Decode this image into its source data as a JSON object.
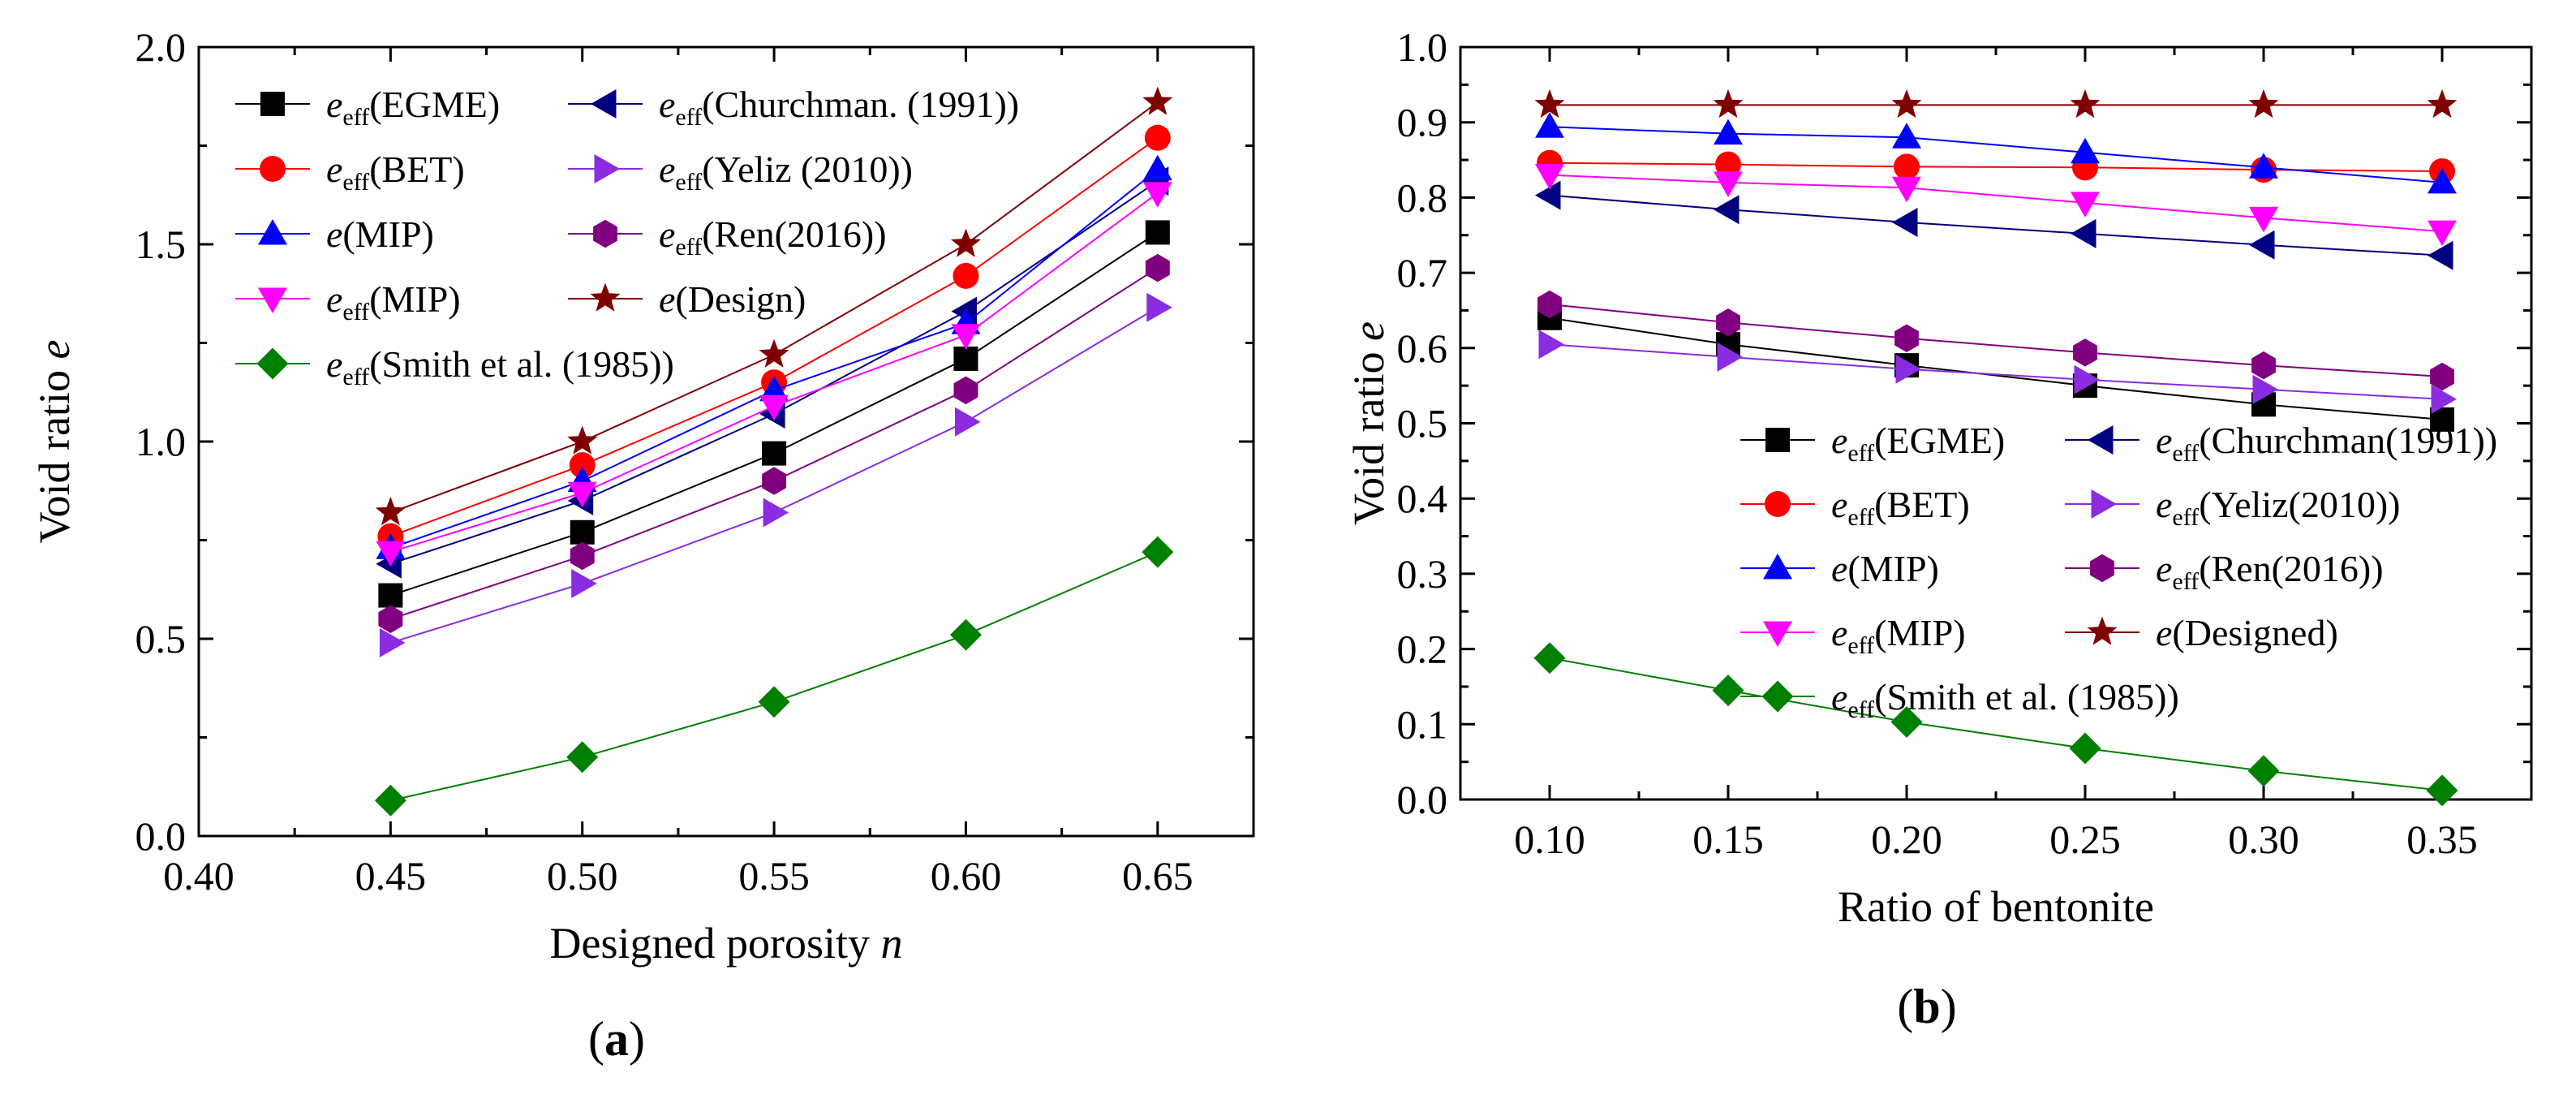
{
  "chart_data": [
    {
      "type": "line",
      "panel_label": "(a)",
      "xlabel_text": "Designed porosity ",
      "xlabel_var": "n",
      "ylabel_text": "Void ratio ",
      "ylabel_var": "e",
      "xlim": [
        0.4,
        0.675
      ],
      "ylim": [
        0.0,
        2.0
      ],
      "xticks": [
        0.4,
        0.45,
        0.5,
        0.55,
        0.6,
        0.65
      ],
      "xtick_labels": [
        "0.40",
        "0.45",
        "0.50",
        "0.55",
        "0.60",
        "0.65"
      ],
      "yticks": [
        0.0,
        0.5,
        1.0,
        1.5,
        2.0
      ],
      "ytick_labels": [
        "0.0",
        "0.5",
        "1.0",
        "1.5",
        "2.0"
      ],
      "x": [
        0.45,
        0.5,
        0.55,
        0.6,
        0.65
      ],
      "legend_columns": 2,
      "legend_placement": "top-left",
      "series": [
        {
          "id": "egme",
          "base": "e",
          "sub": "eff",
          "rest": "(EGME)",
          "color": "#000000",
          "marker": "square",
          "values": [
            0.61,
            0.77,
            0.97,
            1.21,
            1.53
          ]
        },
        {
          "id": "churchman",
          "base": "e",
          "sub": "eff",
          "rest": "(Churchman. (1991))",
          "color": "#000080",
          "marker": "triangle-left",
          "values": [
            0.69,
            0.85,
            1.07,
            1.33,
            1.66
          ]
        },
        {
          "id": "bet",
          "base": "e",
          "sub": "eff",
          "rest": "(BET)",
          "color": "#ff0000",
          "marker": "circle",
          "values": [
            0.76,
            0.94,
            1.15,
            1.42,
            1.77
          ]
        },
        {
          "id": "yeliz",
          "base": "e",
          "sub": "eff",
          "rest": "(Yeliz (2010))",
          "color": "#8b2be2",
          "marker": "triangle-right",
          "values": [
            0.49,
            0.64,
            0.82,
            1.05,
            1.34
          ]
        },
        {
          "id": "mip",
          "base": "e",
          "sub": "",
          "rest": "(MIP)",
          "color": "#0000ff",
          "marker": "triangle-up",
          "values": [
            0.73,
            0.9,
            1.13,
            1.3,
            1.69
          ]
        },
        {
          "id": "ren",
          "base": "e",
          "sub": "eff",
          "rest": "(Ren(2016))",
          "color": "#800080",
          "marker": "hexagon",
          "values": [
            0.55,
            0.71,
            0.9,
            1.13,
            1.44
          ]
        },
        {
          "id": "effmip",
          "base": "e",
          "sub": "eff",
          "rest": "(MIP)",
          "color": "#ff00ff",
          "marker": "triangle-down",
          "values": [
            0.72,
            0.87,
            1.09,
            1.27,
            1.63
          ]
        },
        {
          "id": "design",
          "base": "e",
          "sub": "",
          "rest": "(Design)",
          "color": "#800000",
          "marker": "star",
          "values": [
            0.82,
            1.0,
            1.22,
            1.5,
            1.86
          ]
        },
        {
          "id": "smith",
          "base": "e",
          "sub": "eff",
          "rest": "(Smith et al. (1985))",
          "color": "#008000",
          "marker": "diamond",
          "values": [
            0.09,
            0.2,
            0.34,
            0.51,
            0.72
          ]
        }
      ]
    },
    {
      "type": "line",
      "panel_label": "(b)",
      "xlabel_text": "Ratio of bentonite",
      "xlabel_var": "",
      "ylabel_text": "Void ratio ",
      "ylabel_var": "e",
      "xlim": [
        0.075,
        0.375
      ],
      "ylim": [
        0.0,
        1.0
      ],
      "xticks": [
        0.1,
        0.15,
        0.2,
        0.25,
        0.3,
        0.35
      ],
      "xtick_labels": [
        "0.10",
        "0.15",
        "0.20",
        "0.25",
        "0.30",
        "0.35"
      ],
      "yticks": [
        0.0,
        0.1,
        0.2,
        0.3,
        0.4,
        0.5,
        0.6,
        0.7,
        0.8,
        0.9,
        1.0
      ],
      "ytick_labels": [
        "0.0",
        "0.1",
        "0.2",
        "0.3",
        "0.4",
        "0.5",
        "0.6",
        "0.7",
        "0.8",
        "0.9",
        "1.0"
      ],
      "x": [
        0.1,
        0.15,
        0.2,
        0.25,
        0.3,
        0.35
      ],
      "legend_columns": 2,
      "legend_placement": "center-right",
      "series": [
        {
          "id": "egme",
          "base": "e",
          "sub": "eff",
          "rest": "(EGME)",
          "color": "#000000",
          "marker": "square",
          "values": [
            0.64,
            0.605,
            0.577,
            0.55,
            0.525,
            0.505
          ]
        },
        {
          "id": "churchman",
          "base": "e",
          "sub": "eff",
          "rest": "(Churchman(1991))",
          "color": "#000080",
          "marker": "triangle-left",
          "values": [
            0.803,
            0.784,
            0.767,
            0.752,
            0.737,
            0.723
          ]
        },
        {
          "id": "bet",
          "base": "e",
          "sub": "eff",
          "rest": "(BET)",
          "color": "#ff0000",
          "marker": "circle",
          "values": [
            0.846,
            0.844,
            0.841,
            0.84,
            0.837,
            0.835
          ]
        },
        {
          "id": "yeliz",
          "base": "e",
          "sub": "eff",
          "rest": "(Yeliz(2010))",
          "color": "#8b2be2",
          "marker": "triangle-right",
          "values": [
            0.605,
            0.588,
            0.572,
            0.558,
            0.545,
            0.532
          ]
        },
        {
          "id": "mip",
          "base": "e",
          "sub": "",
          "rest": "(MIP)",
          "color": "#0000ff",
          "marker": "triangle-up",
          "values": [
            0.894,
            0.885,
            0.88,
            0.86,
            0.84,
            0.82
          ]
        },
        {
          "id": "ren",
          "base": "e",
          "sub": "eff",
          "rest": "(Ren(2016))",
          "color": "#800080",
          "marker": "hexagon",
          "values": [
            0.658,
            0.634,
            0.613,
            0.594,
            0.577,
            0.562
          ]
        },
        {
          "id": "effmip",
          "base": "e",
          "sub": "eff",
          "rest": "(MIP)",
          "color": "#ff00ff",
          "marker": "triangle-down",
          "values": [
            0.83,
            0.82,
            0.813,
            0.793,
            0.773,
            0.755
          ]
        },
        {
          "id": "designed",
          "base": "e",
          "sub": "",
          "rest": "(Designed)",
          "color": "#800000",
          "marker": "star",
          "values": [
            0.923,
            0.923,
            0.923,
            0.923,
            0.923,
            0.923
          ]
        },
        {
          "id": "smith",
          "base": "e",
          "sub": "eff",
          "rest": "(Smith et al. (1985))",
          "color": "#008000",
          "marker": "diamond",
          "values": [
            0.188,
            0.145,
            0.103,
            0.068,
            0.038,
            0.012
          ]
        }
      ]
    }
  ]
}
